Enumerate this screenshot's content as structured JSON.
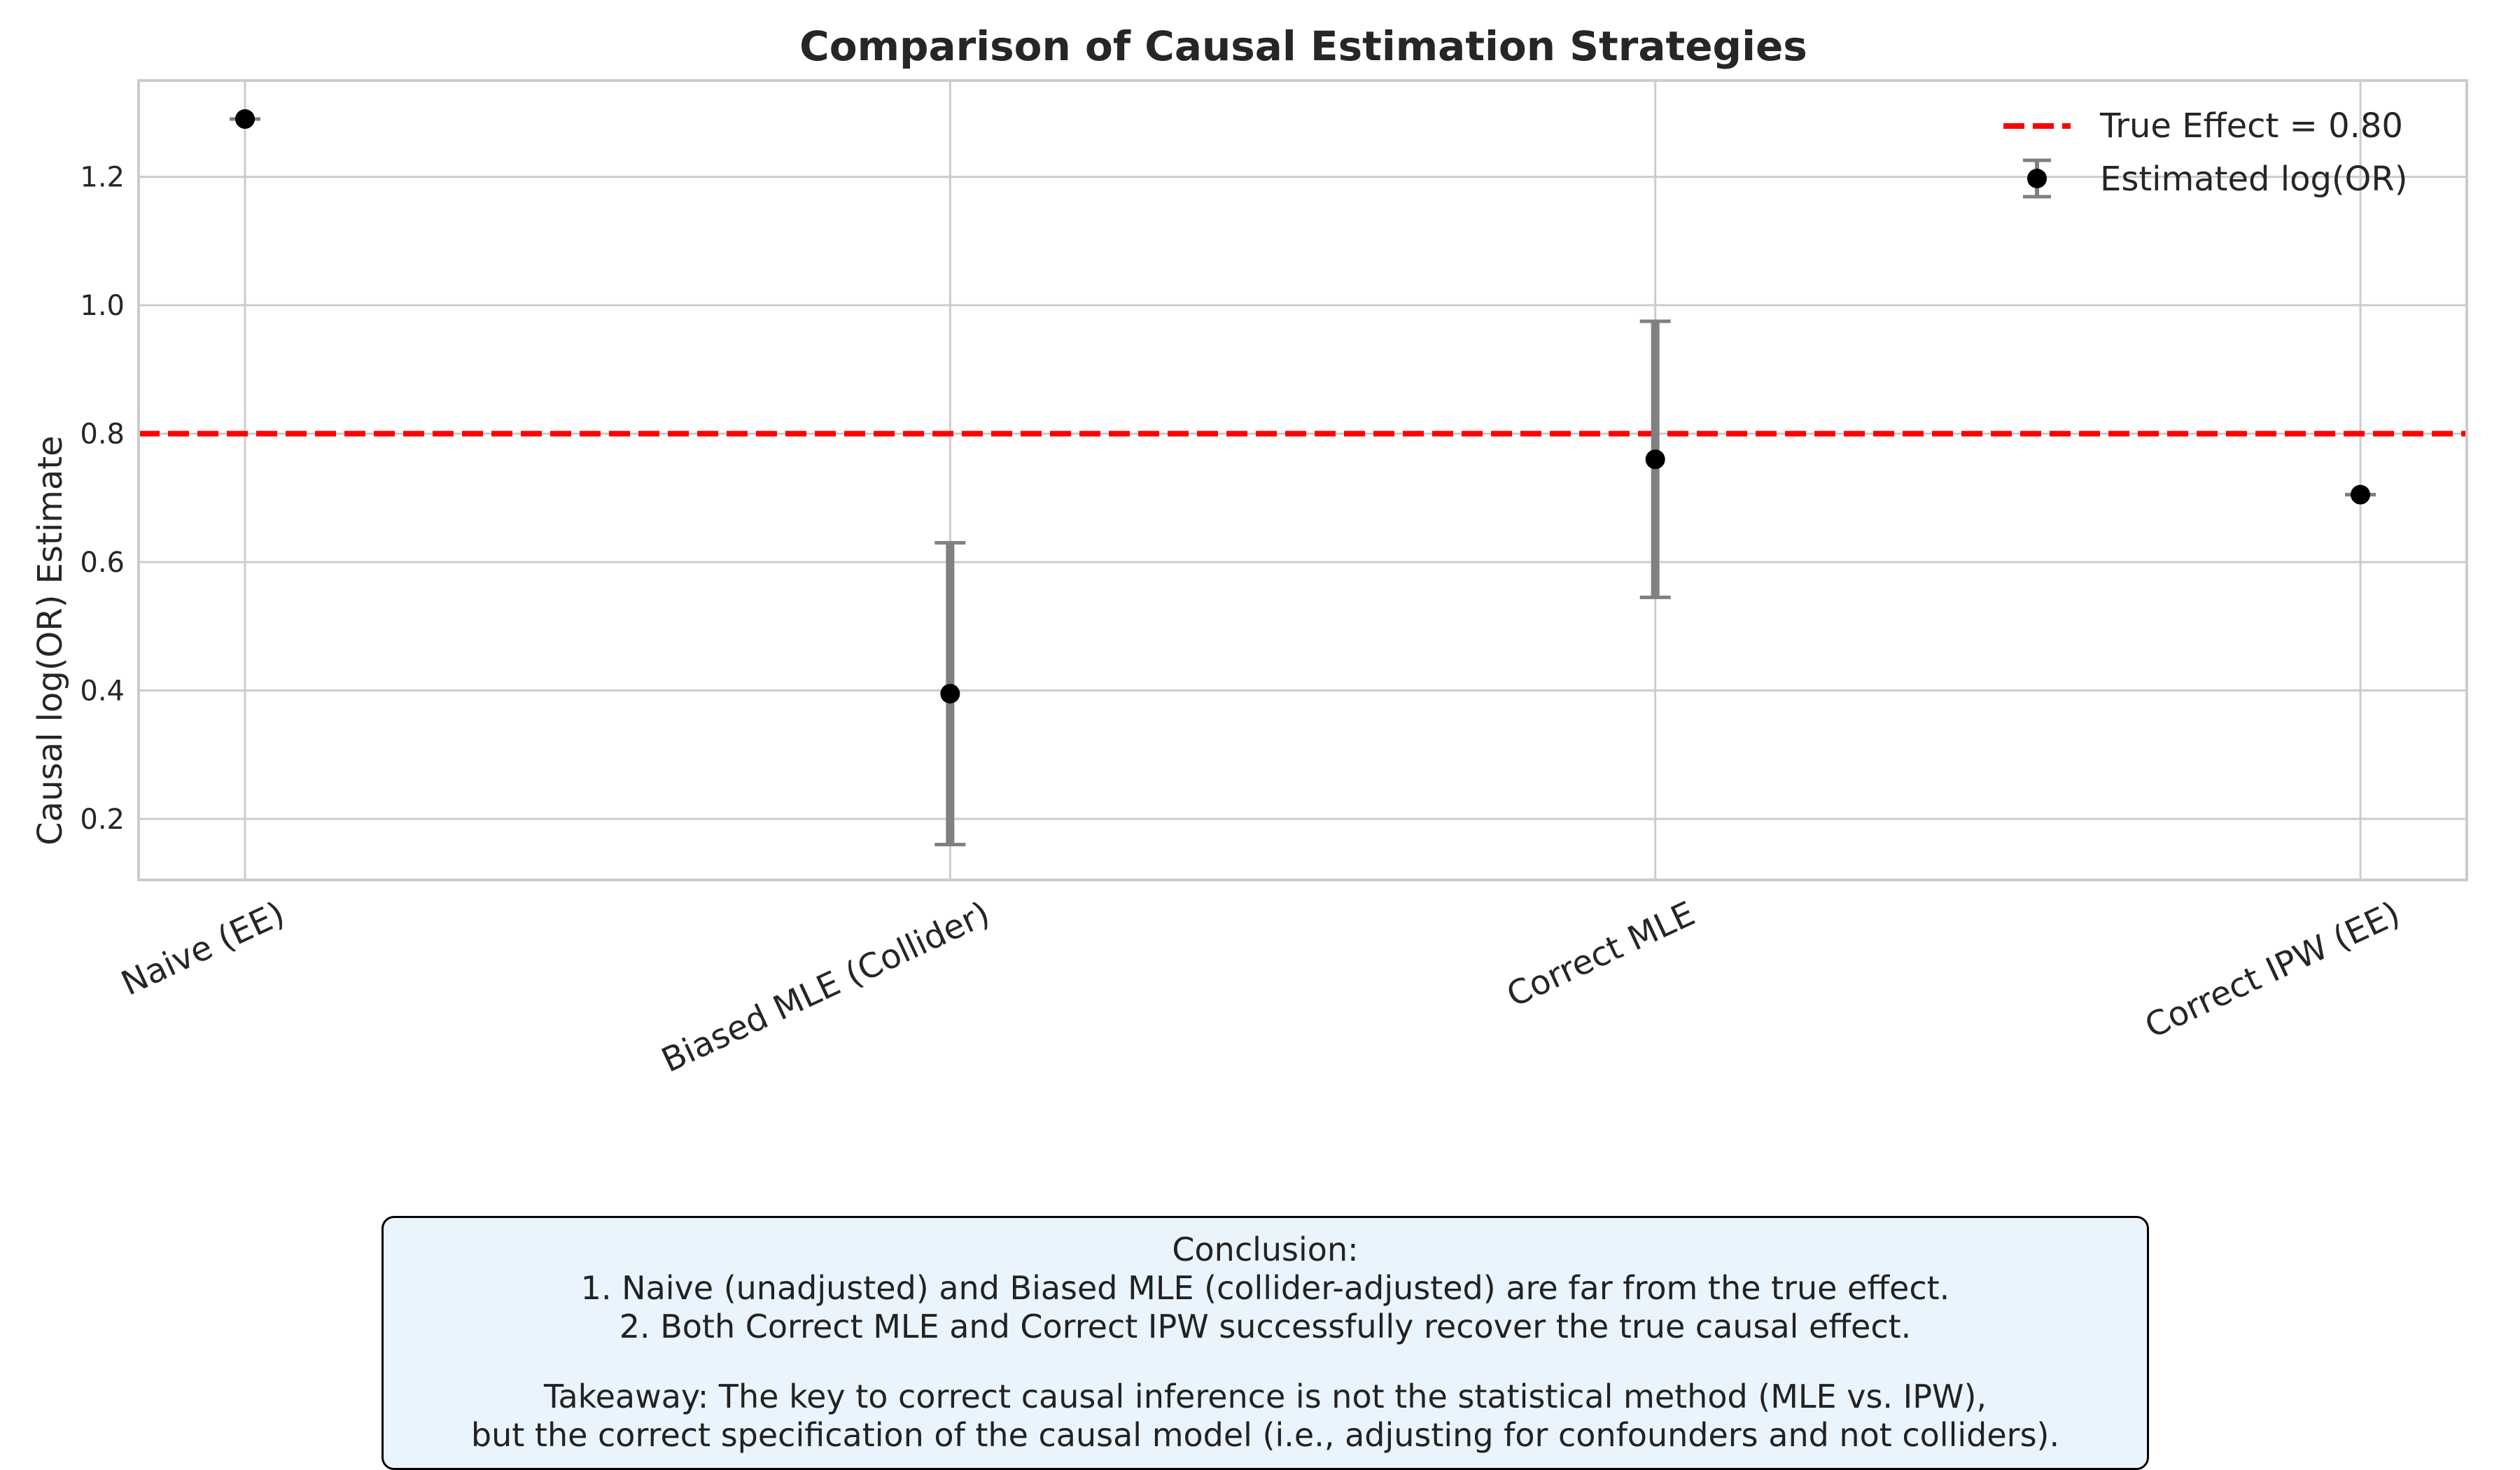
{
  "chart_data": {
    "type": "errorbar",
    "title": "Comparison of Causal Estimation Strategies",
    "xlabel": "",
    "ylabel": "Causal log(OR) Estimate",
    "categories": [
      "Naive (EE)",
      "Biased MLE (Collider)",
      "Correct MLE",
      "Correct IPW (EE)"
    ],
    "series": [
      {
        "name": "Estimated log(OR)",
        "values": [
          1.29,
          0.395,
          0.76,
          0.705
        ],
        "ci_lower": [
          1.29,
          0.16,
          0.545,
          0.705
        ],
        "ci_upper": [
          1.29,
          0.63,
          0.975,
          0.705
        ],
        "color": "#000000",
        "errorbar_color": "#808080"
      }
    ],
    "reference_line": {
      "name": "True Effect = 0.80",
      "value": 0.8,
      "color": "#ff0000",
      "style": "dashed"
    },
    "ylim": [
      0.105,
      1.35
    ],
    "yticks": [
      0.2,
      0.4,
      0.6,
      0.8,
      1.0,
      1.2
    ],
    "ytick_labels": [
      "0.2",
      "0.4",
      "0.6",
      "0.8",
      "1.0",
      "1.2"
    ],
    "grid": true,
    "legend_position": "top-right",
    "legend": [
      "True Effect = 0.80",
      "Estimated log(OR)"
    ]
  },
  "conclusion": {
    "heading": "Conclusion:",
    "point1": "1. Naive (unadjusted) and Biased MLE (collider-adjusted) are far from the true effect.",
    "point2": "2. Both Correct MLE and Correct IPW successfully recover the true causal effect.",
    "takeaway1": "Takeaway: The key to correct causal inference is not the statistical method (MLE vs. IPW),",
    "takeaway2": "but the correct specification of the causal model (i.e., adjusting for confounders and not colliders)."
  }
}
